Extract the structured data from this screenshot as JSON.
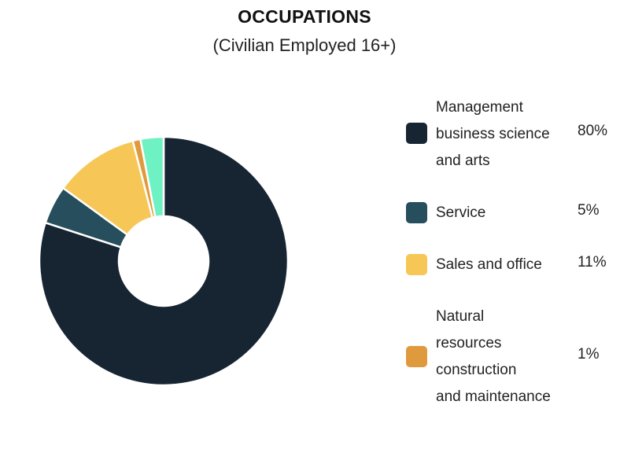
{
  "chart_data": {
    "type": "pie",
    "title": "OCCUPATIONS",
    "subtitle": "(Civilian Employed 16+)",
    "slices": [
      {
        "label": "Management business science and arts",
        "label_lines": [
          "Management",
          "business science",
          "and arts"
        ],
        "value": 80,
        "value_label": "80%",
        "color": "#172533"
      },
      {
        "label": "Service",
        "label_lines": [
          "Service"
        ],
        "value": 5,
        "value_label": "5%",
        "color": "#264e5c"
      },
      {
        "label": "Sales and office",
        "label_lines": [
          "Sales and office"
        ],
        "value": 11,
        "value_label": "11%",
        "color": "#f6c756"
      },
      {
        "label": "Natural resources construction and maintenance",
        "label_lines": [
          "Natural",
          "resources",
          "construction",
          "and maintenance"
        ],
        "value": 1,
        "value_label": "1%",
        "color": "#e09a3e"
      },
      {
        "label": "",
        "label_lines": [],
        "value": 3,
        "value_label": "",
        "color": "#6ff2c3"
      }
    ],
    "donut": true,
    "legend_position": "right"
  }
}
